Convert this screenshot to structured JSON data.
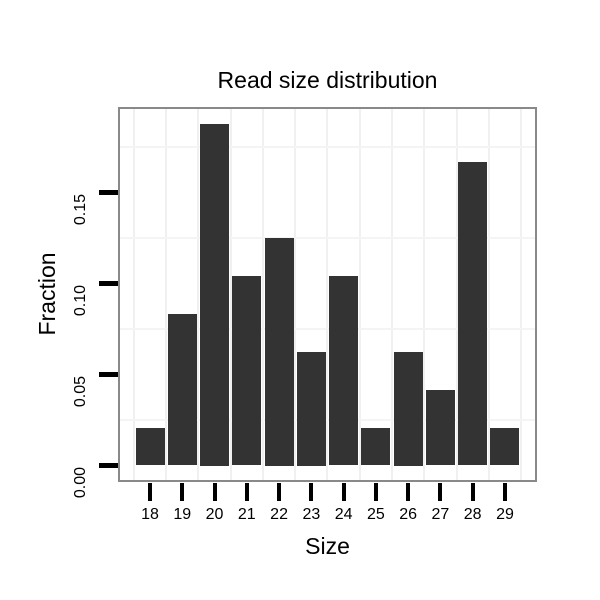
{
  "chart_data": {
    "type": "bar",
    "title": "Read size distribution",
    "xlabel": "Size",
    "ylabel": "Fraction",
    "categories": [
      "18",
      "19",
      "20",
      "21",
      "22",
      "23",
      "24",
      "25",
      "26",
      "27",
      "28",
      "29"
    ],
    "values": [
      0.0208,
      0.0833,
      0.1875,
      0.1042,
      0.125,
      0.0625,
      0.1042,
      0.0208,
      0.0625,
      0.0417,
      0.1667,
      0.0208
    ],
    "y_ticks": [
      {
        "value": 0.0,
        "label": "0.00"
      },
      {
        "value": 0.05,
        "label": "0.05"
      },
      {
        "value": 0.1,
        "label": "0.10"
      },
      {
        "value": 0.15,
        "label": "0.15"
      }
    ],
    "minor_gridline_values": [
      0.025,
      0.075,
      0.125,
      0.175
    ],
    "ylim": [
      0,
      0.196
    ],
    "grid": "minor gridlines only, very light",
    "legend": "none",
    "colors": {
      "bar": "#333333",
      "panel_border": "#898989",
      "gridline": "#f2f2f2",
      "tick": "#000000",
      "text": "#000000",
      "background": "#ffffff"
    }
  }
}
